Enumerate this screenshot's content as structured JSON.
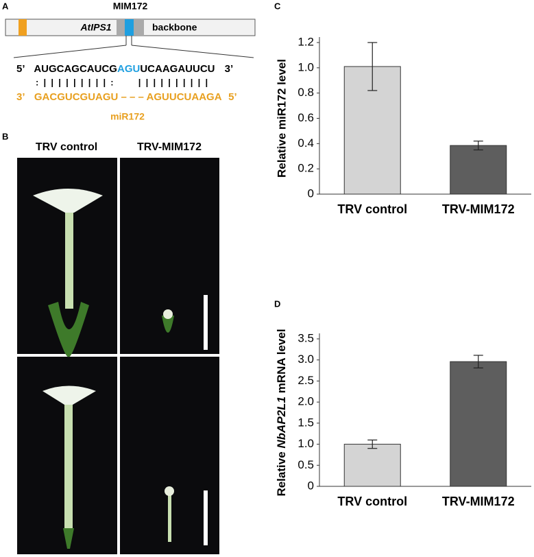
{
  "panels": {
    "a": {
      "label": "A",
      "construct": "MIM172",
      "gene": "AtIPS1",
      "backbone": "backbone",
      "top": {
        "end5": "5’",
        "left": "AUGCAGCAUCG",
        "bulge": "AGU",
        "right": "UCAAGAUUCU",
        "end3": "3’"
      },
      "pairing": ":  |  |  |  |  |  |  |  |  |  :          |  |  |  |  |  |  |  |  |  |",
      "bottom": {
        "end3": "3’",
        "left": "GACGUCGUAGU",
        "gap": "– – –",
        "right": "AGUUCUAAGA",
        "end5": "5’"
      },
      "mirna": "miR172"
    },
    "b": {
      "label": "B",
      "columns": [
        "TRV control",
        "TRV-MIM172"
      ]
    },
    "c": {
      "label": "C"
    },
    "d": {
      "label": "D"
    }
  },
  "chart_data": [
    {
      "type": "bar",
      "ylabel": "Relative miR172 level",
      "categories": [
        "TRV control",
        "TRV-MIM172"
      ],
      "values": [
        1.01,
        0.385
      ],
      "errors": [
        0.19,
        0.035
      ],
      "colors": [
        "#d4d4d4",
        "#5e5e5e"
      ],
      "ylim": [
        0,
        1.2
      ],
      "yticks": [
        0,
        0.2,
        0.4,
        0.6,
        0.8,
        {
          "value": 1,
          "label": "1.0"
        },
        1.2
      ]
    },
    {
      "type": "bar",
      "ylabel": [
        "Relative ",
        "NbAP2L1",
        " mRNA level"
      ],
      "categories": [
        "TRV control",
        "TRV-MIM172"
      ],
      "values": [
        1.0,
        2.96
      ],
      "errors": [
        0.1,
        0.15
      ],
      "colors": [
        "#d4d4d4",
        "#5e5e5e"
      ],
      "ylim": [
        0,
        3.5
      ],
      "yticks": [
        0,
        0.5,
        {
          "value": 1,
          "label": "1.0"
        },
        1.5,
        {
          "value": 2,
          "label": "2.0"
        },
        2.5,
        {
          "value": 3,
          "label": "3.0"
        },
        3.5
      ]
    }
  ]
}
